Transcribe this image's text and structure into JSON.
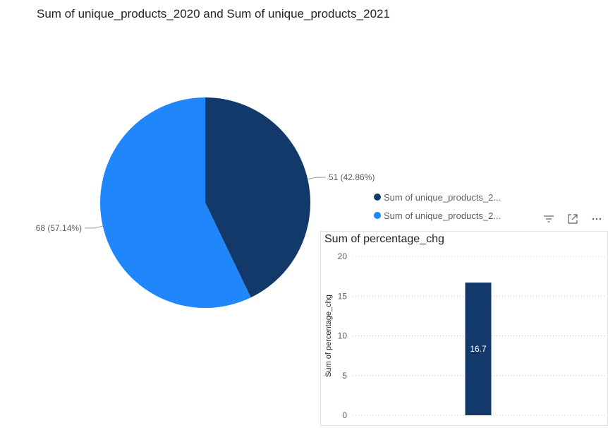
{
  "pie": {
    "title": "Sum of unique_products_2020 and Sum of unique_products_2021",
    "legend": [
      {
        "label": "Sum of unique_products_2...",
        "color": "#12396a"
      },
      {
        "label": "Sum of unique_products_2...",
        "color": "#1f87fb"
      }
    ]
  },
  "bar": {
    "title": "Sum of percentage_chg"
  },
  "icons": [
    "filter-icon",
    "focus-mode-icon",
    "more-options-icon"
  ],
  "chart_data": [
    {
      "type": "pie",
      "title": "Sum of unique_products_2020 and Sum of unique_products_2021",
      "series": [
        {
          "name": "Sum of unique_products_2...",
          "value": 51,
          "label": "51 (42.86%)",
          "color": "#12396a"
        },
        {
          "name": "Sum of unique_products_2...",
          "value": 68,
          "label": "68 (57.14%)",
          "color": "#1f87fb"
        }
      ],
      "legend_position": "right"
    },
    {
      "type": "bar",
      "title": "Sum of percentage_chg",
      "ylabel": "Sum of percentage_chg",
      "xlabel": "",
      "categories": [
        ""
      ],
      "values": [
        16.7
      ],
      "data_labels": [
        "16.7"
      ],
      "ylim": [
        0,
        20
      ],
      "yticks": [
        0,
        5,
        10,
        15,
        20
      ],
      "grid": true,
      "color": "#12396a"
    }
  ]
}
